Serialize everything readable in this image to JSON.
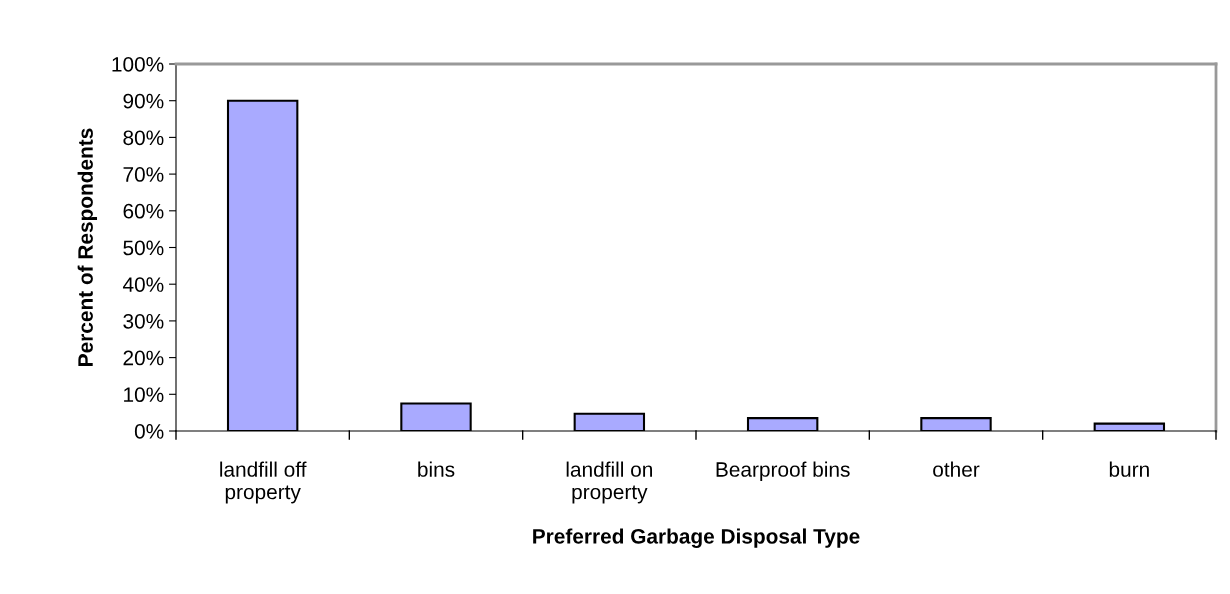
{
  "chart_data": {
    "type": "bar",
    "xlabel": "Preferred Garbage Disposal Type",
    "ylabel": "Percent of Respondents",
    "categories": [
      "landfill off\nproperty",
      "bins",
      "landfill on\nproperty",
      "Bearproof bins",
      "other",
      "burn"
    ],
    "values": [
      90,
      7.5,
      4.7,
      3.5,
      3.5,
      2.0
    ],
    "color": "#a9aaff",
    "ylim": [
      0,
      100
    ],
    "yticks": [
      {
        "value": 0,
        "label": "0%"
      },
      {
        "value": 10,
        "label": "10%"
      },
      {
        "value": 20,
        "label": "20%"
      },
      {
        "value": 30,
        "label": "30%"
      },
      {
        "value": 40,
        "label": "40%"
      },
      {
        "value": 50,
        "label": "50%"
      },
      {
        "value": 60,
        "label": "60%"
      },
      {
        "value": 70,
        "label": "70%"
      },
      {
        "value": 80,
        "label": "80%"
      },
      {
        "value": 90,
        "label": "90%"
      },
      {
        "value": 100,
        "label": "100%"
      }
    ],
    "grid": false,
    "legend": false
  }
}
